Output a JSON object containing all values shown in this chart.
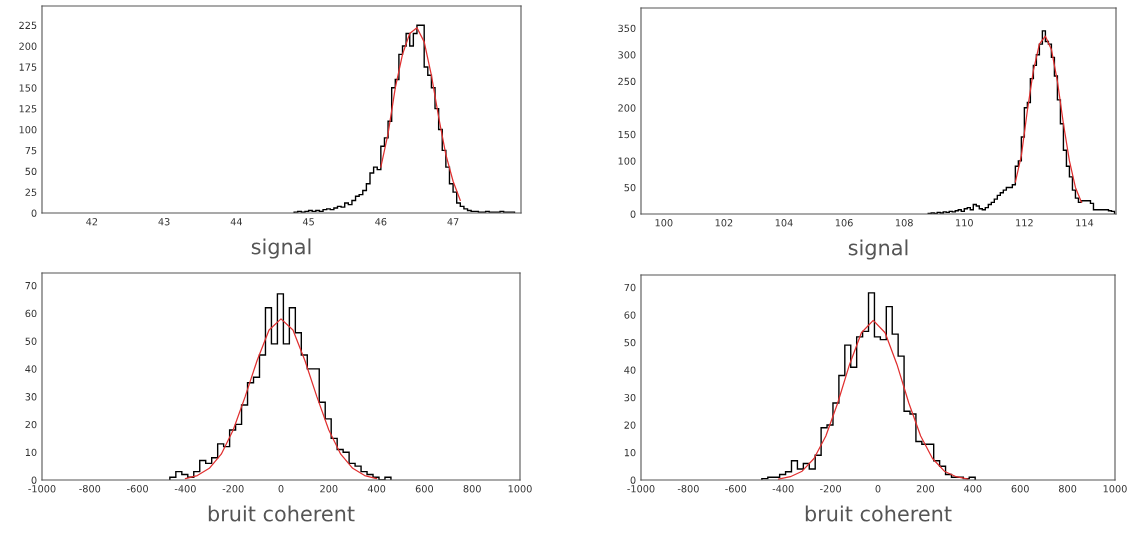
{
  "chart_data": [
    {
      "type": "histogram",
      "xlabel": "signal",
      "xlim": [
        41.31,
        47.94
      ],
      "ylim": [
        0,
        248
      ],
      "xticks": [
        42,
        43,
        44,
        45,
        46,
        47
      ],
      "yticks": [
        0,
        25,
        50,
        75,
        100,
        125,
        150,
        175,
        200,
        225
      ],
      "grid": false,
      "series": [
        {
          "type": "histogram",
          "color": "#000000",
          "bins": [
            44.8,
            44.85,
            44.9,
            44.95,
            45.0,
            45.05,
            45.1,
            45.15,
            45.2,
            45.25,
            45.3,
            45.35,
            45.4,
            45.45,
            45.5,
            45.55,
            45.6,
            45.65,
            45.7,
            45.75,
            45.8,
            45.85,
            45.9,
            45.95,
            46.0,
            46.05,
            46.1,
            46.15,
            46.2,
            46.25,
            46.3,
            46.35,
            46.4,
            46.45,
            46.5,
            46.55,
            46.6,
            46.65,
            46.7,
            46.75,
            46.8,
            46.85,
            46.9,
            46.95,
            47.0,
            47.05,
            47.1,
            47.15,
            47.2,
            47.25,
            47.3,
            47.35,
            47.4,
            47.45,
            47.5,
            47.55,
            47.6,
            47.65,
            47.7,
            47.75,
            47.8,
            47.85
          ],
          "values": [
            1,
            2,
            1,
            2,
            3,
            2,
            3,
            2,
            4,
            5,
            4,
            6,
            8,
            7,
            12,
            10,
            15,
            20,
            22,
            27,
            35,
            48,
            55,
            52,
            80,
            90,
            110,
            150,
            160,
            190,
            200,
            215,
            200,
            215,
            225,
            225,
            175,
            165,
            150,
            125,
            100,
            75,
            55,
            35,
            25,
            12,
            8,
            5,
            3,
            2,
            2,
            1,
            1,
            2,
            1,
            1,
            1,
            2,
            1,
            1,
            1
          ]
        },
        {
          "type": "line",
          "color": "#e03030",
          "x": [
            46.0,
            46.1,
            46.2,
            46.3,
            46.4,
            46.5,
            46.6,
            46.7,
            46.8,
            46.9,
            47.0,
            47.1
          ],
          "values": [
            55,
            95,
            150,
            190,
            215,
            222,
            205,
            165,
            115,
            70,
            38,
            15
          ]
        }
      ]
    },
    {
      "type": "histogram",
      "xlabel": "signal",
      "xlim": [
        99.24,
        115.05
      ],
      "ylim": [
        0,
        388
      ],
      "xticks": [
        100,
        102,
        104,
        106,
        108,
        110,
        112,
        114
      ],
      "yticks": [
        0,
        50,
        100,
        150,
        200,
        250,
        300,
        350
      ],
      "grid": false,
      "series": [
        {
          "type": "histogram",
          "color": "#000000",
          "bins": [
            108.8,
            108.9,
            109.0,
            109.1,
            109.2,
            109.3,
            109.4,
            109.5,
            109.6,
            109.7,
            109.8,
            109.9,
            110.0,
            110.1,
            110.2,
            110.3,
            110.4,
            110.5,
            110.6,
            110.7,
            110.8,
            110.9,
            111.0,
            111.1,
            111.2,
            111.3,
            111.4,
            111.5,
            111.6,
            111.7,
            111.8,
            111.9,
            112.0,
            112.1,
            112.2,
            112.3,
            112.4,
            112.5,
            112.6,
            112.7,
            112.8,
            112.9,
            113.0,
            113.1,
            113.2,
            113.3,
            113.4,
            113.5,
            113.6,
            113.7,
            113.8,
            113.9,
            114.0,
            114.1,
            114.2,
            114.3,
            114.4,
            114.5,
            114.6,
            114.7,
            114.8,
            114.9,
            115.0
          ],
          "values": [
            1,
            2,
            1,
            3,
            2,
            4,
            3,
            5,
            4,
            6,
            8,
            5,
            10,
            12,
            8,
            18,
            15,
            10,
            8,
            12,
            18,
            22,
            28,
            35,
            40,
            45,
            50,
            50,
            55,
            90,
            100,
            145,
            200,
            210,
            255,
            280,
            300,
            320,
            345,
            325,
            320,
            295,
            260,
            215,
            170,
            120,
            90,
            70,
            45,
            30,
            22,
            25,
            25,
            25,
            20,
            8,
            8,
            8,
            8,
            8,
            6,
            5
          ]
        },
        {
          "type": "line",
          "color": "#e03030",
          "x": [
            111.7,
            111.9,
            112.1,
            112.3,
            112.5,
            112.7,
            112.9,
            113.1,
            113.3,
            113.5,
            113.7,
            113.9
          ],
          "values": [
            60,
            110,
            195,
            270,
            320,
            335,
            310,
            250,
            170,
            100,
            50,
            22
          ]
        }
      ]
    },
    {
      "type": "histogram",
      "xlabel": "bruit coherent",
      "xlim": [
        -1000,
        1000
      ],
      "ylim": [
        0,
        74.5
      ],
      "xticks": [
        -1000,
        -800,
        -600,
        -400,
        -200,
        0,
        200,
        400,
        600,
        800,
        1000
      ],
      "yticks": [
        0,
        10,
        20,
        30,
        40,
        50,
        60,
        70
      ],
      "grid": false,
      "series": [
        {
          "type": "histogram",
          "color": "#000000",
          "bins": [
            -465,
            -440,
            -415,
            -390,
            -365,
            -340,
            -315,
            -290,
            -265,
            -240,
            -215,
            -190,
            -165,
            -140,
            -115,
            -90,
            -65,
            -40,
            -15,
            10,
            35,
            60,
            85,
            110,
            135,
            160,
            185,
            210,
            235,
            260,
            285,
            310,
            335,
            360,
            385,
            410,
            435,
            460
          ],
          "values": [
            1,
            3,
            2,
            1,
            3,
            7,
            6,
            8,
            13,
            12,
            18,
            20,
            27,
            35,
            37,
            45,
            62,
            49,
            67,
            49,
            62,
            53,
            45,
            40,
            40,
            28,
            22,
            15,
            11,
            10,
            6,
            5,
            3,
            2,
            1,
            0,
            1
          ]
        },
        {
          "type": "line",
          "color": "#e03030",
          "x": [
            -400,
            -350,
            -300,
            -250,
            -200,
            -150,
            -100,
            -50,
            0,
            50,
            100,
            150,
            200,
            250,
            300,
            350,
            400
          ],
          "values": [
            0.5,
            1.6,
            4.2,
            9.3,
            18,
            30,
            43,
            54,
            58,
            54,
            43,
            30,
            18,
            9.3,
            4.2,
            1.6,
            0.5
          ]
        }
      ]
    },
    {
      "type": "histogram",
      "xlabel": "bruit coherent",
      "xlim": [
        -1000,
        1000
      ],
      "ylim": [
        0,
        74.5
      ],
      "xticks": [
        -1000,
        -800,
        -600,
        -400,
        -200,
        0,
        200,
        400,
        600,
        800,
        1000
      ],
      "yticks": [
        0,
        10,
        20,
        30,
        40,
        50,
        60,
        70
      ],
      "grid": false,
      "series": [
        {
          "type": "histogram",
          "color": "#000000",
          "bins": [
            -490,
            -465,
            -440,
            -415,
            -390,
            -365,
            -340,
            -315,
            -290,
            -265,
            -240,
            -215,
            -190,
            -165,
            -140,
            -115,
            -90,
            -65,
            -40,
            -15,
            10,
            35,
            60,
            85,
            110,
            135,
            160,
            185,
            210,
            235,
            260,
            285,
            310,
            335,
            360,
            385,
            410
          ],
          "values": [
            0.5,
            1,
            1,
            2,
            3,
            7,
            4,
            6,
            4,
            9,
            19,
            20,
            28,
            38,
            49,
            41,
            52,
            54,
            68,
            52,
            51,
            63,
            53,
            45,
            25,
            24,
            14,
            13,
            13,
            7,
            5,
            2,
            1,
            1,
            0.5,
            1
          ]
        },
        {
          "type": "line",
          "color": "#e03030",
          "x": [
            -420,
            -370,
            -320,
            -270,
            -220,
            -170,
            -120,
            -70,
            -20,
            30,
            80,
            130,
            180,
            230,
            280,
            330,
            380
          ],
          "values": [
            0.3,
            1.2,
            3.2,
            7.8,
            16,
            28,
            42,
            53.5,
            58,
            53.5,
            42,
            28,
            16,
            7.8,
            3.2,
            1.2,
            0.3
          ]
        }
      ]
    }
  ]
}
